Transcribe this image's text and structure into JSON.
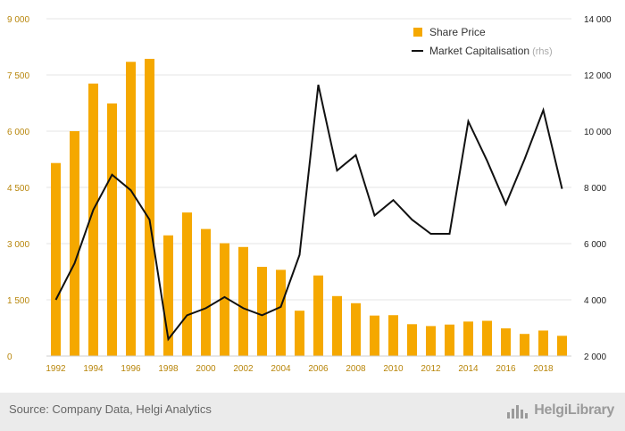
{
  "chart_data": {
    "type": "bar+line",
    "title": "",
    "categories": [
      "1992",
      "1993",
      "1994",
      "1995",
      "1996",
      "1997",
      "1998",
      "1999",
      "2000",
      "2001",
      "2002",
      "2003",
      "2004",
      "2005",
      "2006",
      "2007",
      "2008",
      "2009",
      "2010",
      "2011",
      "2012",
      "2013",
      "2014",
      "2015",
      "2016",
      "2017",
      "2018",
      "2019"
    ],
    "x_tick_labels": [
      "1992",
      "1994",
      "1996",
      "1998",
      "2000",
      "2002",
      "2004",
      "2006",
      "2008",
      "2010",
      "2012",
      "2014",
      "2016",
      "2018"
    ],
    "series": [
      {
        "name": "Share Price",
        "type": "bar",
        "axis": "left",
        "color": "#f5a800",
        "values": [
          5150,
          6000,
          7270,
          6740,
          7850,
          7930,
          3220,
          3830,
          3390,
          3010,
          2910,
          2380,
          2300,
          1210,
          2150,
          1600,
          1410,
          1080,
          1090,
          850,
          800,
          840,
          920,
          940,
          740,
          590,
          680,
          540
        ]
      },
      {
        "name": "Market Capitalisation",
        "name_suffix": "(rhs)",
        "type": "line",
        "axis": "right",
        "color": "#111111",
        "values": [
          4000,
          5300,
          7200,
          8450,
          7900,
          6850,
          2600,
          3450,
          3700,
          4100,
          3700,
          3450,
          3750,
          5600,
          11650,
          8600,
          9150,
          7000,
          7550,
          6850,
          6350,
          6350,
          10350,
          8950,
          7400,
          9000,
          10750,
          7950
        ]
      }
    ],
    "y_left": {
      "range": [
        0,
        9000
      ],
      "ticks": [
        0,
        1500,
        3000,
        4500,
        6000,
        7500,
        9000
      ],
      "tick_labels": [
        "0",
        "1 500",
        "3 000",
        "4 500",
        "6 000",
        "7 500",
        "9 000"
      ]
    },
    "y_right": {
      "range": [
        2000,
        14000
      ],
      "ticks": [
        2000,
        4000,
        6000,
        8000,
        10000,
        12000,
        14000
      ],
      "tick_labels": [
        "2 000",
        "4 000",
        "6 000",
        "8 000",
        "10 000",
        "12 000",
        "14 000"
      ]
    },
    "grid": true,
    "legend_position": "top-right"
  },
  "footer": {
    "source": "Source: Company Data, Helgi Analytics",
    "brand": "HelgiLibrary"
  },
  "colors": {
    "bar": "#f5a800",
    "line": "#111111",
    "grid": "#e4e4e4",
    "left_tick": "#b8860b"
  }
}
